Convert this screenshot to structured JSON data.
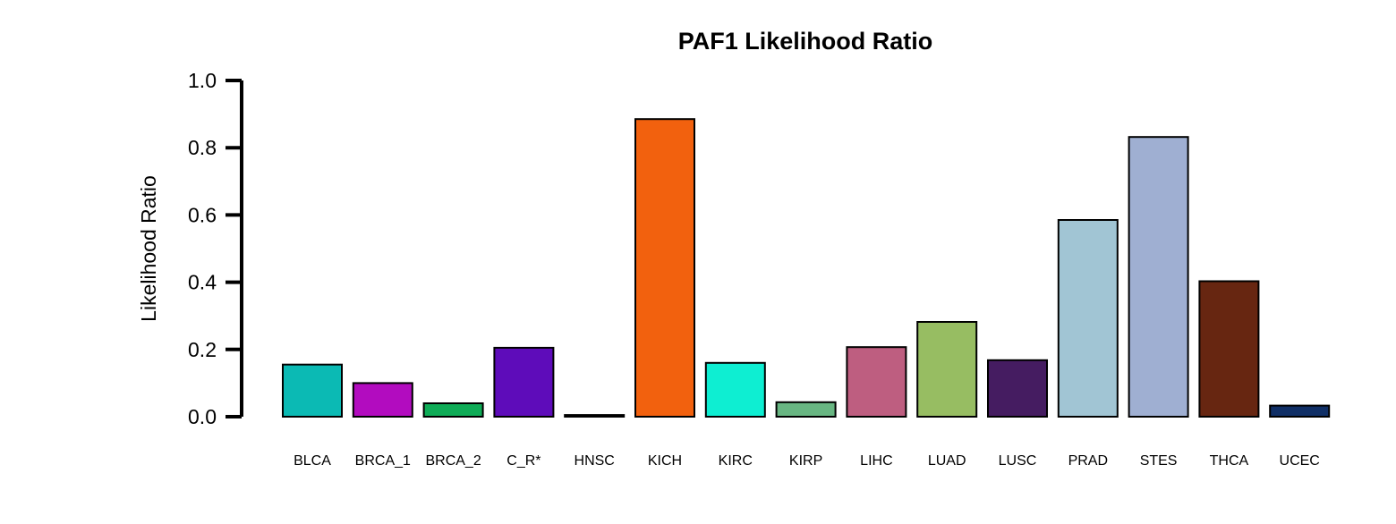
{
  "chart_data": {
    "type": "bar",
    "title": "PAF1 Likelihood Ratio",
    "xlabel": "",
    "ylabel": "Likelihood Ratio",
    "ylim": [
      0,
      1.0
    ],
    "yticks": [
      "0.0",
      "0.2",
      "0.4",
      "0.6",
      "0.8",
      "1.0"
    ],
    "grid": false,
    "legend": "none",
    "categories": [
      "BLCA",
      "BRCA_1",
      "BRCA_2",
      "C_R*",
      "HNSC",
      "KICH",
      "KIRC",
      "KIRP",
      "LIHC",
      "LUAD",
      "LUSC",
      "PRAD",
      "STES",
      "THCA",
      "UCEC"
    ],
    "values": [
      0.155,
      0.1,
      0.04,
      0.205,
      0.005,
      0.885,
      0.16,
      0.043,
      0.207,
      0.282,
      0.168,
      0.585,
      0.832,
      0.403,
      0.033
    ],
    "colors": [
      "#0BBAB4",
      "#B20CBF",
      "#0FAC57",
      "#5E0CBA",
      "#3E1408",
      "#F2610E",
      "#0EEED2",
      "#68B682",
      "#BE5E80",
      "#97BD62",
      "#451C61",
      "#A1C5D4",
      "#9FAFD2",
      "#672611",
      "#102F66"
    ]
  }
}
